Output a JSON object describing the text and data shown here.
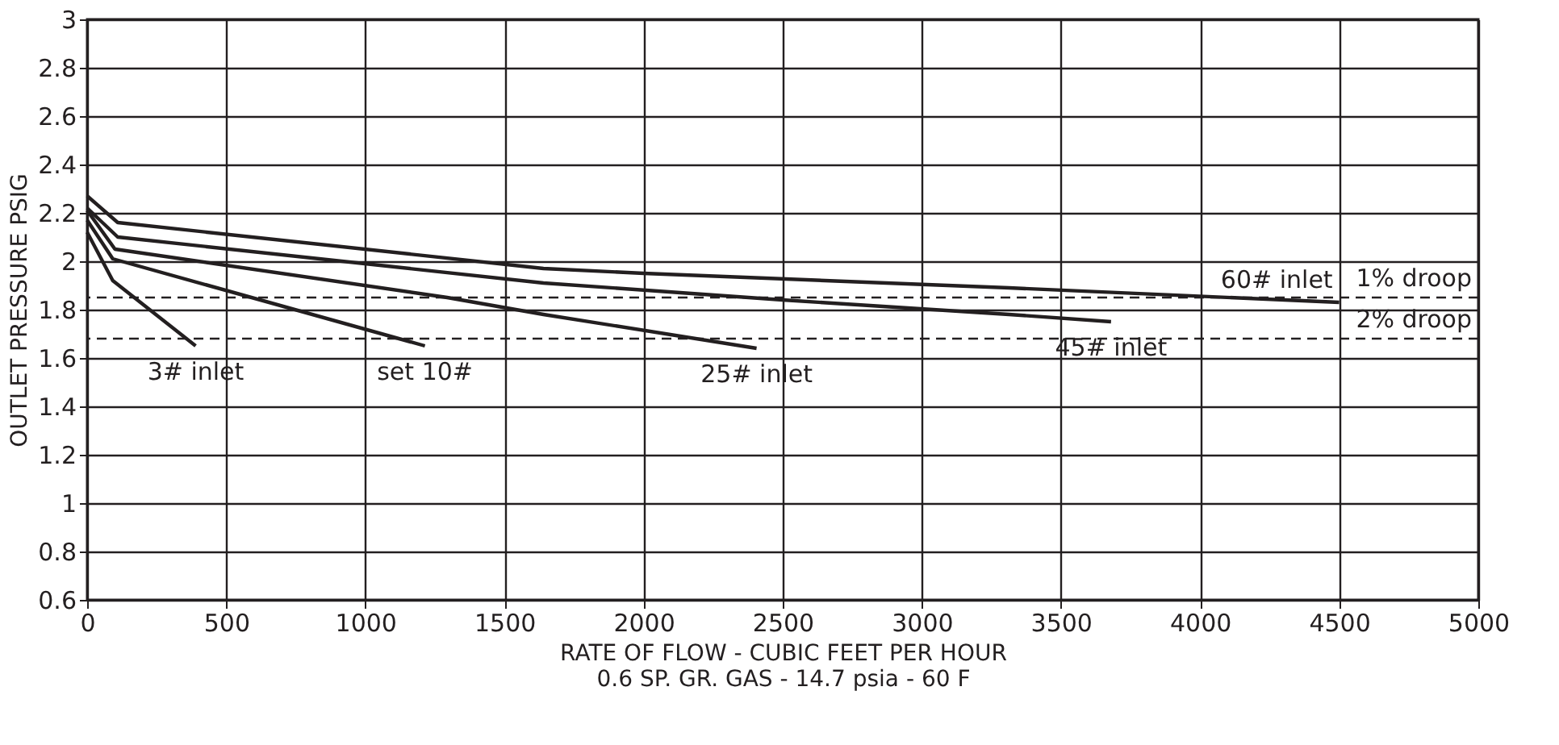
{
  "chart_data": {
    "type": "line",
    "xlabel": "RATE OF FLOW - CUBIC FEET PER HOUR",
    "ylabel": "OUTLET PRESSURE PSIG",
    "xlim": [
      0,
      5000
    ],
    "ylim": [
      0.6,
      3
    ],
    "xticks": [
      0,
      500,
      1000,
      1500,
      2000,
      2500,
      3000,
      3500,
      4000,
      4500,
      5000
    ],
    "yticks": [
      0.6,
      0.8,
      1,
      1.2,
      1.4,
      1.6,
      1.8,
      2,
      2.2,
      2.4,
      2.6,
      2.8,
      3
    ],
    "grid": true,
    "marker": "none",
    "line_style": "solid",
    "series": [
      {
        "name": "60# inlet",
        "color": "#231f20",
        "x": [
          0,
          110,
          1640,
          2000,
          3313,
          4500
        ],
        "values": [
          2.27,
          2.16,
          1.97,
          1.95,
          1.89,
          1.83
        ]
      },
      {
        "name": "45# inlet",
        "color": "#231f20",
        "x": [
          0,
          110,
          1640,
          2500,
          3313,
          3680
        ],
        "values": [
          2.22,
          2.1,
          1.91,
          1.84,
          1.78,
          1.75
        ]
      },
      {
        "name": "25# inlet",
        "color": "#231f20",
        "x": [
          0,
          100,
          1294,
          1640,
          2406
        ],
        "values": [
          2.21,
          2.05,
          1.85,
          1.78,
          1.64
        ]
      },
      {
        "name": "set 10#",
        "color": "#231f20",
        "x": [
          0,
          92,
          1214
        ],
        "values": [
          2.17,
          2.01,
          1.65
        ]
      },
      {
        "name": "3# inlet",
        "color": "#231f20",
        "x": [
          0,
          92,
          390
        ],
        "values": [
          2.12,
          1.92,
          1.65
        ]
      }
    ],
    "ref_lines": [
      {
        "axis": "y",
        "value": 1.85,
        "line_style": "dashed",
        "color": "#231f20",
        "label": "1% droop"
      },
      {
        "axis": "y",
        "value": 1.68,
        "line_style": "dashed",
        "color": "#231f20",
        "label": "2% droop"
      }
    ],
    "annotations": [
      "0.6 SP. GR. GAS - 14.7 psia - 60 F"
    ]
  }
}
